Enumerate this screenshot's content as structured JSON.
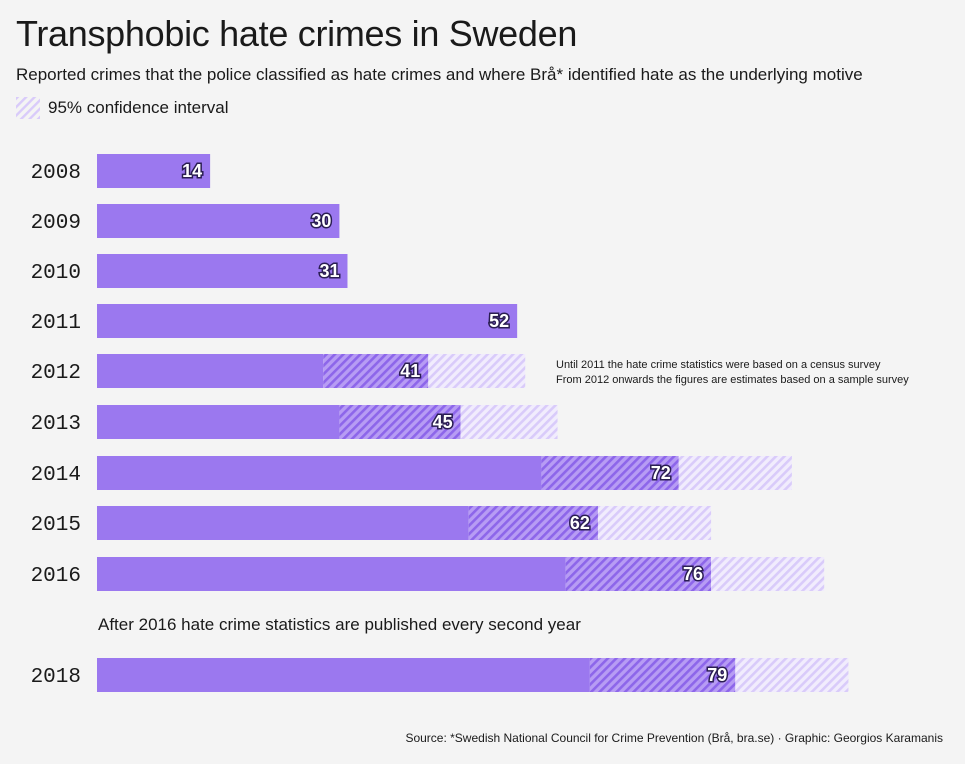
{
  "title": "Transphobic hate crimes in Sweden",
  "subtitle": "Reported crimes that the police classified as hate crimes and where Brå* identified hate as the underlying motive",
  "legend": {
    "ci_label": "95% confidence interval"
  },
  "notes": {
    "method_line1": "Until 2011 the hate crime statistics were based on a census survey",
    "method_line2": "From 2012 onwards the figures are estimates based on a sample survey",
    "break_note": "After 2016 hate crime statistics are published every second year"
  },
  "source": "Source: *Swedish National Council for Crime Prevention (Brå, bra.se) · Graphic: Georgios Karamanis",
  "colors": {
    "bar": "#9b78ef",
    "ci_hatch_dark": "#9b78ef",
    "ci_hatch_light": "#e3d8fb",
    "value_outline": "#2a1d52",
    "background": "#f4f4f4"
  },
  "chart_data": {
    "type": "bar",
    "orientation": "horizontal",
    "categories": [
      "2008",
      "2009",
      "2010",
      "2011",
      "2012",
      "2013",
      "2014",
      "2015",
      "2016",
      "2018"
    ],
    "values": [
      14,
      30,
      31,
      52,
      41,
      45,
      72,
      62,
      76,
      79
    ],
    "ci_low": [
      null,
      null,
      null,
      null,
      28,
      30,
      55,
      46,
      58,
      61
    ],
    "ci_high": [
      null,
      null,
      null,
      null,
      53,
      57,
      86,
      76,
      90,
      93
    ],
    "legend_entries": [
      "95% confidence interval"
    ],
    "legend_position": "top-left",
    "xlim": [
      0,
      100
    ],
    "grid": false,
    "xlabel": "",
    "ylabel": ""
  }
}
